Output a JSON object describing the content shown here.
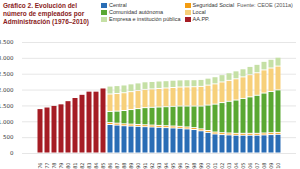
{
  "chart_data": {
    "type": "bar",
    "title": "Gráfico 2. Evolución del número de empleados por Administración (1976–2010)",
    "source": "Fuente: CEOE (2011a)",
    "stacked": true,
    "grid": true,
    "legend": "top",
    "categories": [
      "1976",
      "1977",
      "1978",
      "1979",
      "1980",
      "1981",
      "1982",
      "1983",
      "1984",
      "1985",
      "1986",
      "1987",
      "1988",
      "1989",
      "1990",
      "1991",
      "1992",
      "1993",
      "1994",
      "1995",
      "1996",
      "1997",
      "1998",
      "1999",
      "2000",
      "2001",
      "2002",
      "2003",
      "2004",
      "2005",
      "2006",
      "2007",
      "2008",
      "2009",
      "2010"
    ],
    "ylim": [
      0,
      3500
    ],
    "yticks": [
      0,
      500,
      {
        "value": 1000,
        "label": "1.000"
      },
      {
        "value": 1500,
        "label": "1.500"
      },
      {
        "value": 2000,
        "label": "2.000"
      },
      {
        "value": 2500,
        "label": "2.500"
      },
      {
        "value": 3000,
        "label": "3.000"
      },
      {
        "value": 3500,
        "label": "3.500"
      }
    ],
    "series": [
      {
        "name": "Central",
        "color": "#2a6db5",
        "values": [
          null,
          null,
          null,
          null,
          null,
          null,
          null,
          null,
          null,
          null,
          900,
          880,
          860,
          850,
          840,
          830,
          820,
          810,
          800,
          790,
          780,
          760,
          740,
          700,
          650,
          600,
          580,
          570,
          560,
          560,
          560,
          560,
          570,
          580,
          590
        ]
      },
      {
        "name": "Seguridad Social",
        "color": "#f39c12",
        "values": [
          null,
          null,
          null,
          null,
          null,
          null,
          null,
          null,
          null,
          null,
          60,
          60,
          60,
          60,
          60,
          60,
          60,
          60,
          60,
          60,
          60,
          60,
          60,
          60,
          60,
          60,
          60,
          60,
          60,
          60,
          60,
          60,
          60,
          60,
          60
        ]
      },
      {
        "name": "Comunidad autónoma",
        "color": "#5aa832",
        "values": [
          null,
          null,
          null,
          null,
          null,
          null,
          null,
          null,
          null,
          null,
          350,
          380,
          420,
          460,
          500,
          540,
          560,
          580,
          600,
          620,
          640,
          660,
          680,
          720,
          800,
          880,
          950,
          1000,
          1050,
          1100,
          1150,
          1200,
          1260,
          1300,
          1340
        ]
      },
      {
        "name": "Local",
        "color": "#f7d07a",
        "values": [
          null,
          null,
          null,
          null,
          null,
          null,
          null,
          null,
          null,
          null,
          550,
          555,
          560,
          565,
          570,
          575,
          580,
          585,
          590,
          595,
          600,
          605,
          610,
          620,
          630,
          640,
          650,
          660,
          670,
          680,
          700,
          710,
          730,
          740,
          750
        ]
      },
      {
        "name": "Empresa e institución pública",
        "color": "#c5e0a5",
        "values": [
          null,
          null,
          null,
          null,
          null,
          null,
          null,
          null,
          null,
          null,
          250,
          250,
          245,
          245,
          240,
          240,
          235,
          235,
          230,
          230,
          225,
          225,
          220,
          220,
          220,
          225,
          230,
          240,
          250,
          255,
          260,
          265,
          270,
          275,
          280
        ]
      },
      {
        "name": "AA.PP.",
        "color": "#a51c24",
        "values": [
          1400,
          1450,
          1500,
          1550,
          1650,
          1750,
          1850,
          1950,
          1950,
          2050,
          null,
          null,
          null,
          null,
          null,
          null,
          null,
          null,
          null,
          null,
          null,
          null,
          null,
          null,
          null,
          null,
          null,
          null,
          null,
          null,
          null,
          null,
          null,
          null,
          null
        ]
      }
    ]
  }
}
